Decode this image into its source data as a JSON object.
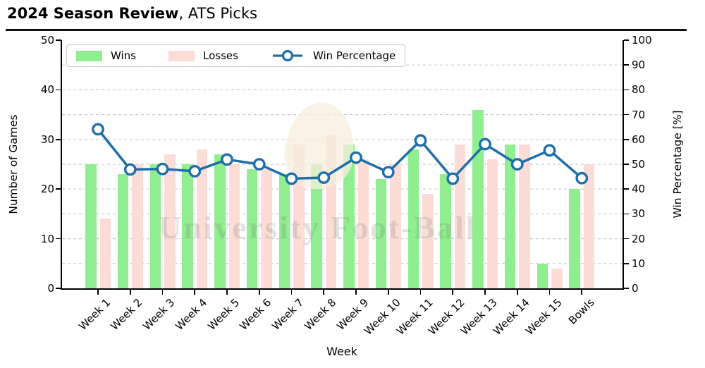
{
  "title": {
    "bold": "2024 Season Review",
    "suffix": ", ATS Picks"
  },
  "watermark": {
    "text": "University Foot-Ball"
  },
  "legend": {
    "entries": [
      "Wins",
      "Losses",
      "Win Percentage"
    ],
    "position": "top-left"
  },
  "chart_data": {
    "type": "bar+line",
    "categories": [
      "Week 1",
      "Week 2",
      "Week 3",
      "Week 4",
      "Week 5",
      "Week 6",
      "Week 7",
      "Week 8",
      "Week 9",
      "Week 10",
      "Week 11",
      "Week 12",
      "Week 13",
      "Week 14",
      "Week 15",
      "Bowls"
    ],
    "series": [
      {
        "name": "Wins",
        "type": "bar",
        "axis": "left",
        "color": "#90ee90",
        "values": [
          25,
          23,
          25,
          25,
          27,
          24,
          23,
          25,
          29,
          22,
          28,
          23,
          36,
          29,
          5,
          20
        ]
      },
      {
        "name": "Losses",
        "type": "bar",
        "axis": "left",
        "color": "#fbdcd6",
        "values": [
          14,
          25,
          27,
          28,
          25,
          24,
          29,
          31,
          26,
          25,
          19,
          29,
          26,
          29,
          4,
          25
        ]
      },
      {
        "name": "Win Percentage",
        "type": "line",
        "axis": "right",
        "color": "#1f6fa8",
        "marker": "circle-open",
        "marker_fill": "#ffffff",
        "values": [
          64.1,
          47.9,
          48.1,
          47.2,
          51.9,
          50.0,
          44.2,
          44.6,
          52.7,
          46.8,
          59.6,
          44.2,
          58.1,
          50.0,
          55.6,
          44.4
        ]
      }
    ],
    "left_axis": {
      "label": "Number of Games",
      "min": 0,
      "max": 50,
      "ticks": [
        0,
        10,
        20,
        30,
        40,
        50
      ]
    },
    "right_axis": {
      "label": "Win Percentage [%]",
      "min": 0,
      "max": 100,
      "ticks": [
        0,
        10,
        20,
        30,
        40,
        50,
        60,
        70,
        80,
        90,
        100
      ]
    },
    "x_axis": {
      "label": "Week"
    },
    "grid": {
      "show": true,
      "style": "dashed",
      "color": "#c9c9c9",
      "at_right_axis_ticks": [
        10,
        20,
        30,
        40,
        50,
        60,
        70,
        80,
        90
      ]
    },
    "spine_color": "#000000"
  }
}
